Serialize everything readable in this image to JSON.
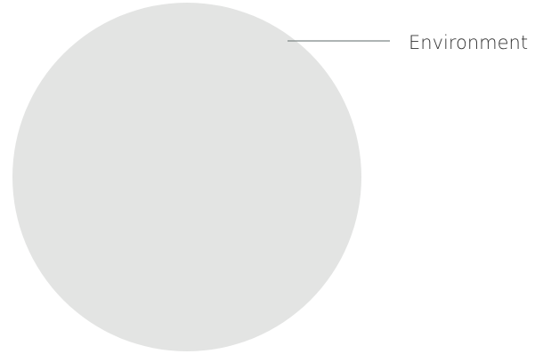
{
  "diagram": {
    "label": "Environment",
    "circle_color": "#e3e4e3",
    "leader_color": "#7e8886",
    "text_color": "#333333"
  }
}
